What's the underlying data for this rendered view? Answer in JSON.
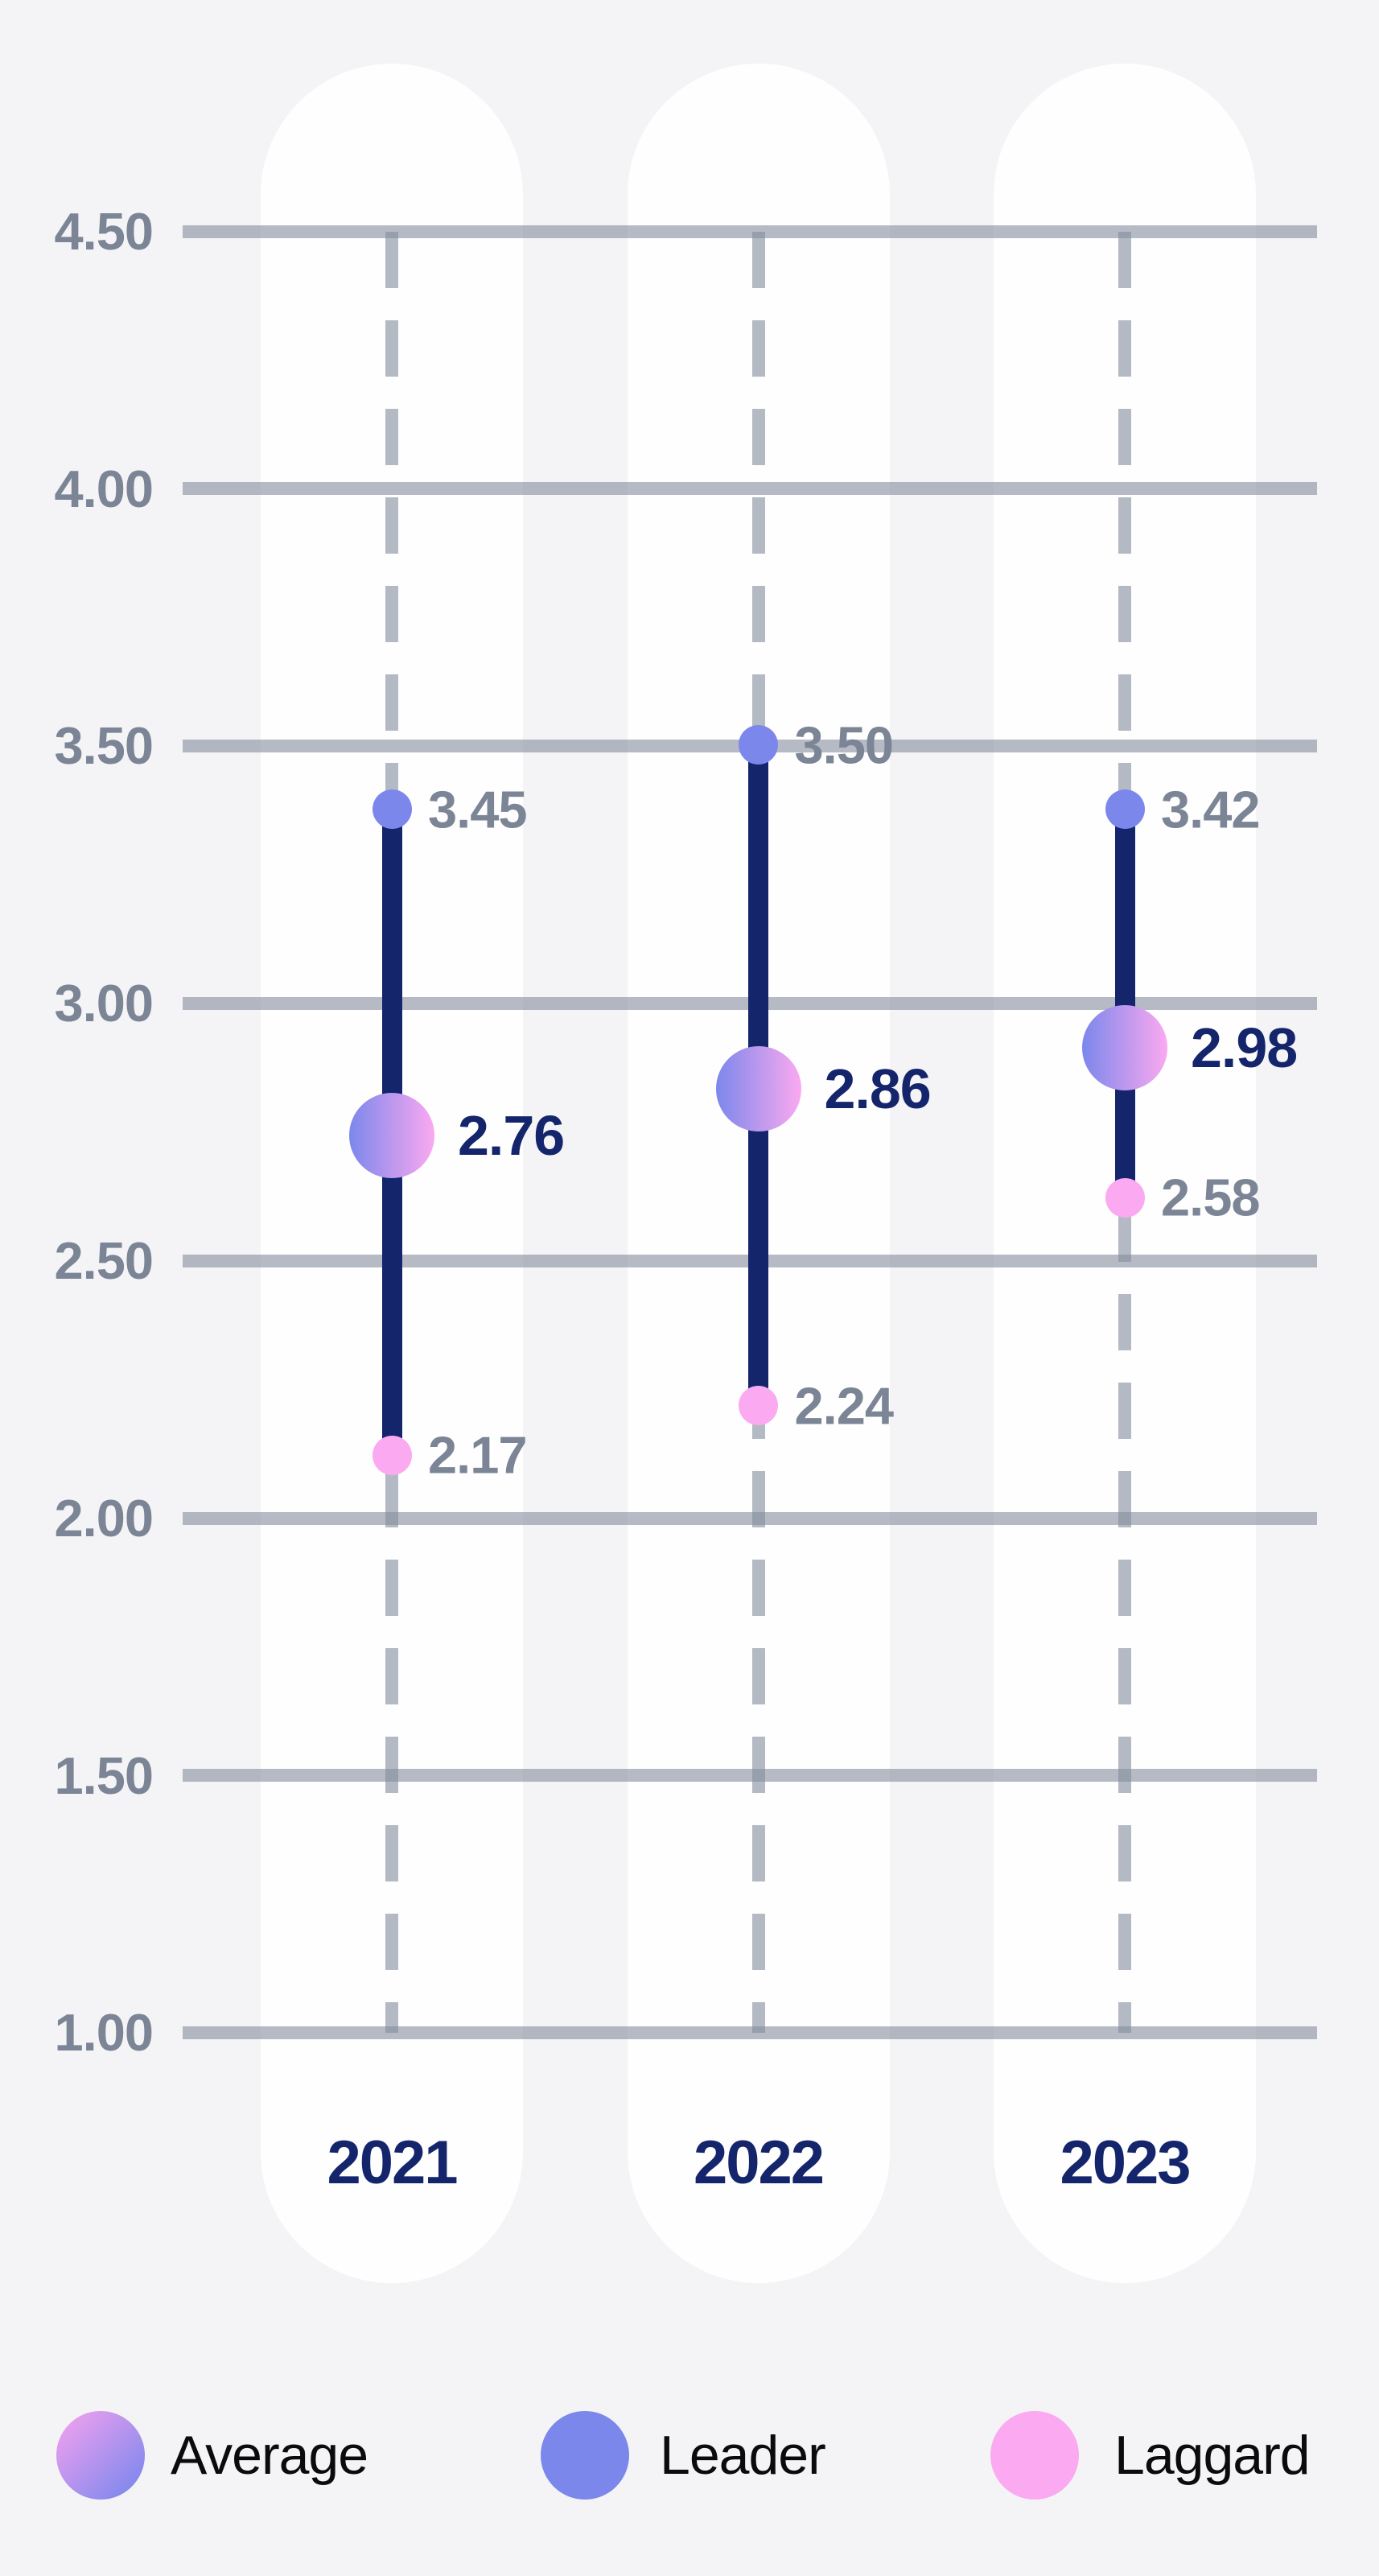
{
  "chart_data": {
    "type": "dumbbell",
    "categories": [
      "2021",
      "2022",
      "2023"
    ],
    "series": [
      {
        "name": "Leader",
        "values": [
          3.45,
          3.5,
          3.42
        ],
        "labels": [
          "3.45",
          "3.50",
          "3.42"
        ]
      },
      {
        "name": "Average",
        "values": [
          2.76,
          2.86,
          2.98
        ],
        "labels": [
          "2.76",
          "2.86",
          "2.98"
        ]
      },
      {
        "name": "Laggard",
        "values": [
          2.17,
          2.24,
          2.58
        ],
        "labels": [
          "2.17",
          "2.24",
          "2.58"
        ]
      }
    ],
    "y_axis": {
      "ticks": [
        "4.50",
        "4.00",
        "3.50",
        "3.00",
        "2.50",
        "2.00",
        "1.50",
        "1.00"
      ],
      "min": 1.0,
      "max": 4.5,
      "step": 0.5
    },
    "legend": [
      {
        "label": "Average",
        "swatch": "gradient"
      },
      {
        "label": "Leader",
        "swatch": "solid"
      },
      {
        "label": "Laggard",
        "swatch": "solid"
      }
    ],
    "colors": {
      "background": "#F4F4F6",
      "column_background": "#FEFEFE",
      "grid": "#838C9C",
      "bar": "#14256C",
      "leader_dot": "#7C87EC",
      "laggard_dot": "#FBA9F0",
      "average_gradient_start": "#7C87EC",
      "average_gradient_end": "#FBA9F0",
      "legend_gradient_start": "#F8A2EF",
      "legend_gradient_end": "#7F88ED",
      "value_label": "#7B8595",
      "average_label": "#14256C",
      "year_label": "#14256C",
      "legend_label": "#0B0B0D"
    },
    "grid": true,
    "legend_position": "bottom"
  }
}
